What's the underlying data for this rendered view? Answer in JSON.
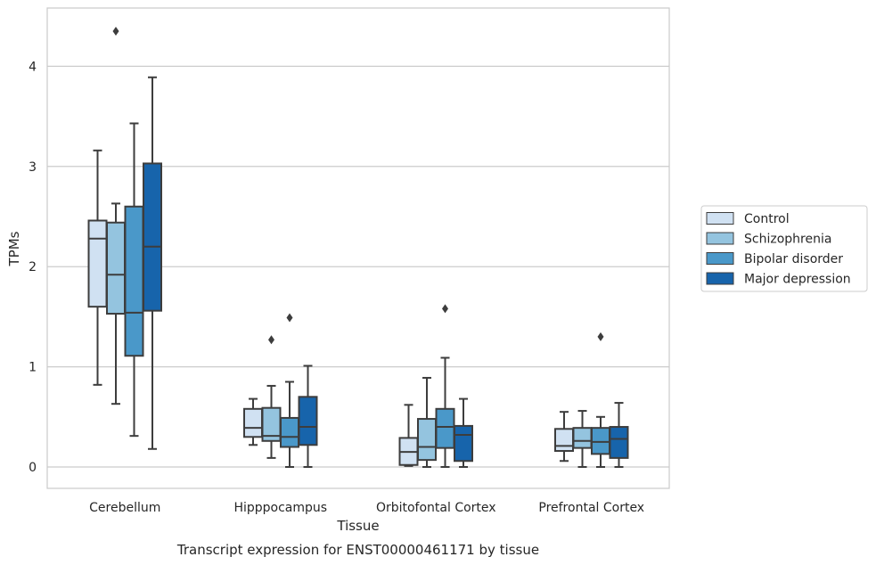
{
  "chart_data": {
    "type": "box",
    "caption": "Transcript expression for ENST00000461171 by tissue",
    "xlabel": "Tissue",
    "ylabel": "TPMs",
    "ylim": [
      -0.21,
      4.58
    ],
    "yticks": [
      0,
      1,
      2,
      3,
      4
    ],
    "grid": true,
    "legend_position": "right",
    "categories": [
      "Cerebellum",
      "Hipppocampus",
      "Orbitofontal Cortex",
      "Prefrontal Cortex"
    ],
    "series": [
      {
        "name": "Control",
        "color": "#d0e1f2",
        "boxes": [
          {
            "whisker_low": 0.82,
            "q1": 1.6,
            "median": 2.28,
            "q3": 2.46,
            "whisker_high": 3.16,
            "outliers": []
          },
          {
            "whisker_low": 0.22,
            "q1": 0.3,
            "median": 0.39,
            "q3": 0.58,
            "whisker_high": 0.68,
            "outliers": []
          },
          {
            "whisker_low": 0.01,
            "q1": 0.02,
            "median": 0.15,
            "q3": 0.29,
            "whisker_high": 0.62,
            "outliers": []
          },
          {
            "whisker_low": 0.06,
            "q1": 0.16,
            "median": 0.21,
            "q3": 0.38,
            "whisker_high": 0.55,
            "outliers": []
          }
        ]
      },
      {
        "name": "Schizophrenia",
        "color": "#94c4df",
        "boxes": [
          {
            "whisker_low": 0.63,
            "q1": 1.53,
            "median": 1.92,
            "q3": 2.44,
            "whisker_high": 2.63,
            "outliers": [
              4.35
            ]
          },
          {
            "whisker_low": 0.09,
            "q1": 0.26,
            "median": 0.31,
            "q3": 0.59,
            "whisker_high": 0.81,
            "outliers": [
              1.27
            ]
          },
          {
            "whisker_low": 0.0,
            "q1": 0.07,
            "median": 0.2,
            "q3": 0.48,
            "whisker_high": 0.89,
            "outliers": []
          },
          {
            "whisker_low": 0.0,
            "q1": 0.19,
            "median": 0.26,
            "q3": 0.39,
            "whisker_high": 0.56,
            "outliers": []
          }
        ]
      },
      {
        "name": "Bipolar disorder",
        "color": "#4a98c9",
        "boxes": [
          {
            "whisker_low": 0.31,
            "q1": 1.11,
            "median": 1.54,
            "q3": 2.6,
            "whisker_high": 3.43,
            "outliers": []
          },
          {
            "whisker_low": 0.0,
            "q1": 0.2,
            "median": 0.3,
            "q3": 0.49,
            "whisker_high": 0.85,
            "outliers": [
              1.49
            ]
          },
          {
            "whisker_low": 0.0,
            "q1": 0.19,
            "median": 0.4,
            "q3": 0.58,
            "whisker_high": 1.09,
            "outliers": [
              1.58
            ]
          },
          {
            "whisker_low": 0.0,
            "q1": 0.13,
            "median": 0.25,
            "q3": 0.39,
            "whisker_high": 0.5,
            "outliers": [
              1.3
            ]
          }
        ]
      },
      {
        "name": "Major depression",
        "color": "#1764ab",
        "boxes": [
          {
            "whisker_low": 0.18,
            "q1": 1.56,
            "median": 2.2,
            "q3": 3.03,
            "whisker_high": 3.89,
            "outliers": []
          },
          {
            "whisker_low": 0.0,
            "q1": 0.22,
            "median": 0.4,
            "q3": 0.7,
            "whisker_high": 1.01,
            "outliers": []
          },
          {
            "whisker_low": 0.0,
            "q1": 0.06,
            "median": 0.32,
            "q3": 0.41,
            "whisker_high": 0.68,
            "outliers": []
          },
          {
            "whisker_low": 0.0,
            "q1": 0.09,
            "median": 0.28,
            "q3": 0.4,
            "whisker_high": 0.64,
            "outliers": []
          }
        ]
      }
    ]
  }
}
